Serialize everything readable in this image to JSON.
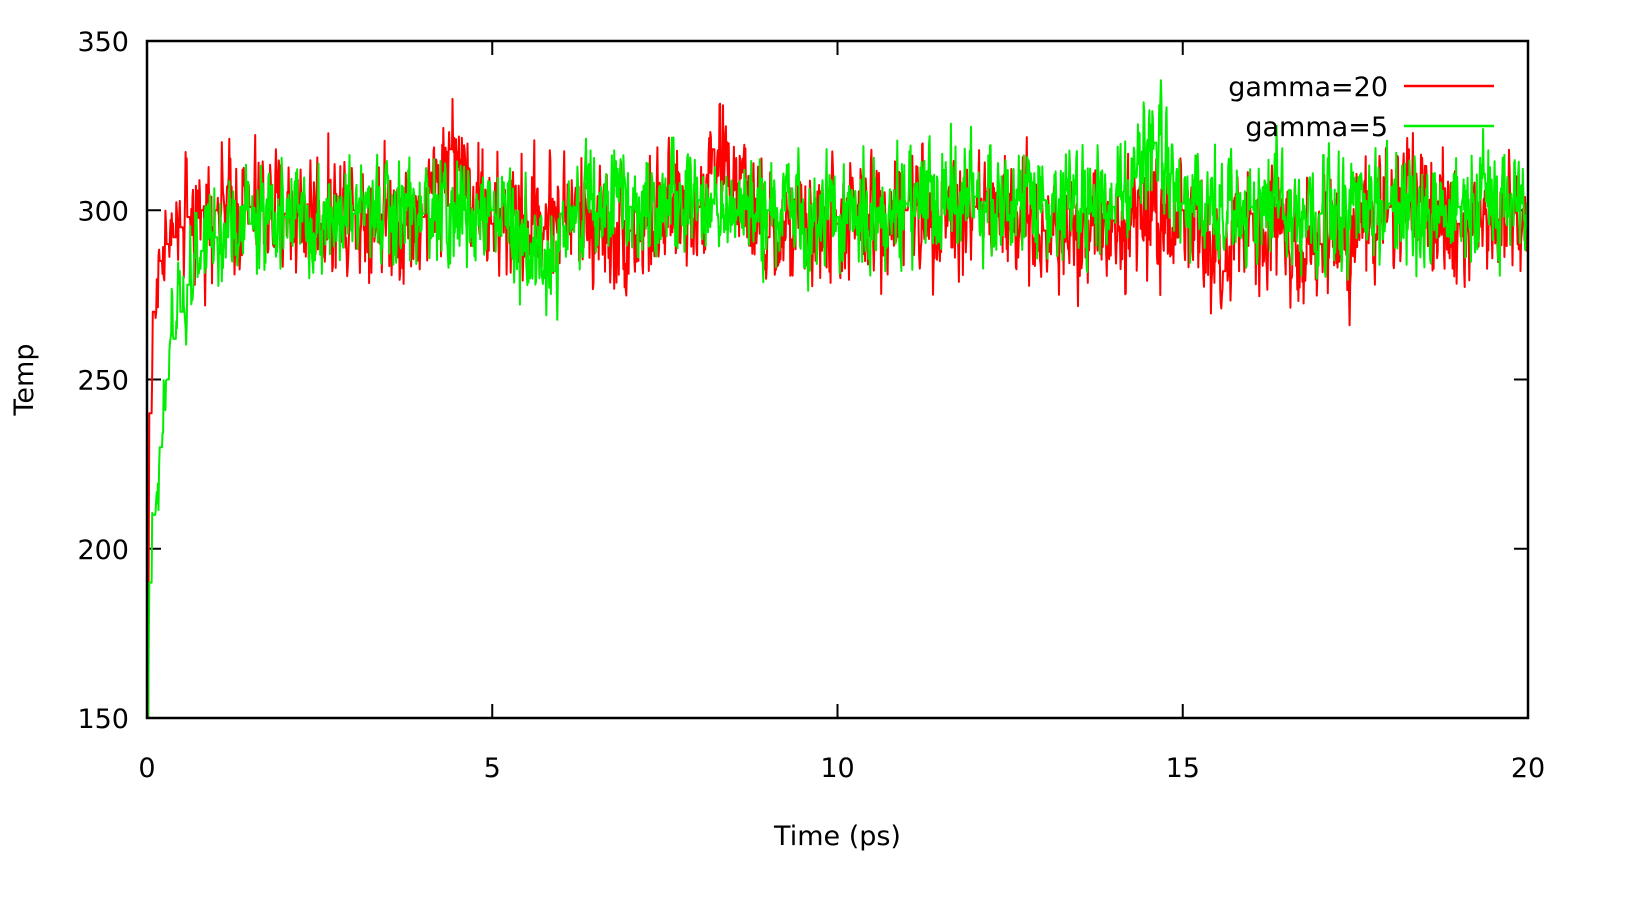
{
  "chart_data": {
    "type": "line",
    "title": "",
    "xlabel": "Time (ps)",
    "ylabel": "Temp",
    "xlim": [
      0,
      20
    ],
    "ylim": [
      150,
      350
    ],
    "x_ticks": [
      0,
      5,
      10,
      15,
      20
    ],
    "y_ticks": [
      150,
      200,
      250,
      300,
      350
    ],
    "x_tick_labels": [
      "0",
      "5",
      "10",
      "15",
      "20"
    ],
    "y_tick_labels": [
      "150",
      "200",
      "250",
      "300",
      "350"
    ],
    "grid": false,
    "legend_position": "top-right",
    "series": [
      {
        "name": "gamma=20",
        "color": "#ff0000",
        "x": [
          0,
          0.05,
          0.1,
          0.2,
          0.3,
          0.4,
          0.5,
          0.6,
          0.8,
          1.0,
          1.5,
          2.0,
          3.0,
          4.0,
          4.4,
          5.0,
          6.0,
          7.0,
          8.0,
          8.2,
          9.0,
          10.0,
          11.0,
          12.0,
          13.0,
          14.0,
          15.0,
          15.6,
          16.0,
          17.0,
          18.0,
          19.0,
          20.0
        ],
        "y": [
          150,
          240,
          270,
          285,
          290,
          292,
          295,
          298,
          300,
          300,
          301,
          299,
          300,
          298,
          318,
          296,
          299,
          294,
          301,
          318,
          292,
          296,
          300,
          301,
          294,
          297,
          300,
          282,
          299,
          290,
          301,
          296,
          300
        ]
      },
      {
        "name": "gamma=5",
        "color": "#00ee00",
        "x": [
          0,
          0.05,
          0.1,
          0.2,
          0.3,
          0.4,
          0.5,
          0.6,
          0.8,
          1.0,
          1.5,
          2.0,
          3.0,
          4.0,
          5.0,
          5.9,
          6.0,
          7.0,
          8.0,
          9.0,
          10.0,
          11.0,
          12.0,
          13.0,
          14.0,
          14.6,
          15.0,
          16.0,
          17.0,
          18.0,
          19.0,
          20.0
        ],
        "y": [
          150,
          190,
          210,
          230,
          250,
          262,
          270,
          278,
          288,
          292,
          296,
          298,
          299,
          299,
          300,
          282,
          299,
          301,
          303,
          300,
          298,
          302,
          304,
          303,
          301,
          320,
          302,
          301,
          299,
          302,
          301,
          302
        ]
      }
    ]
  }
}
